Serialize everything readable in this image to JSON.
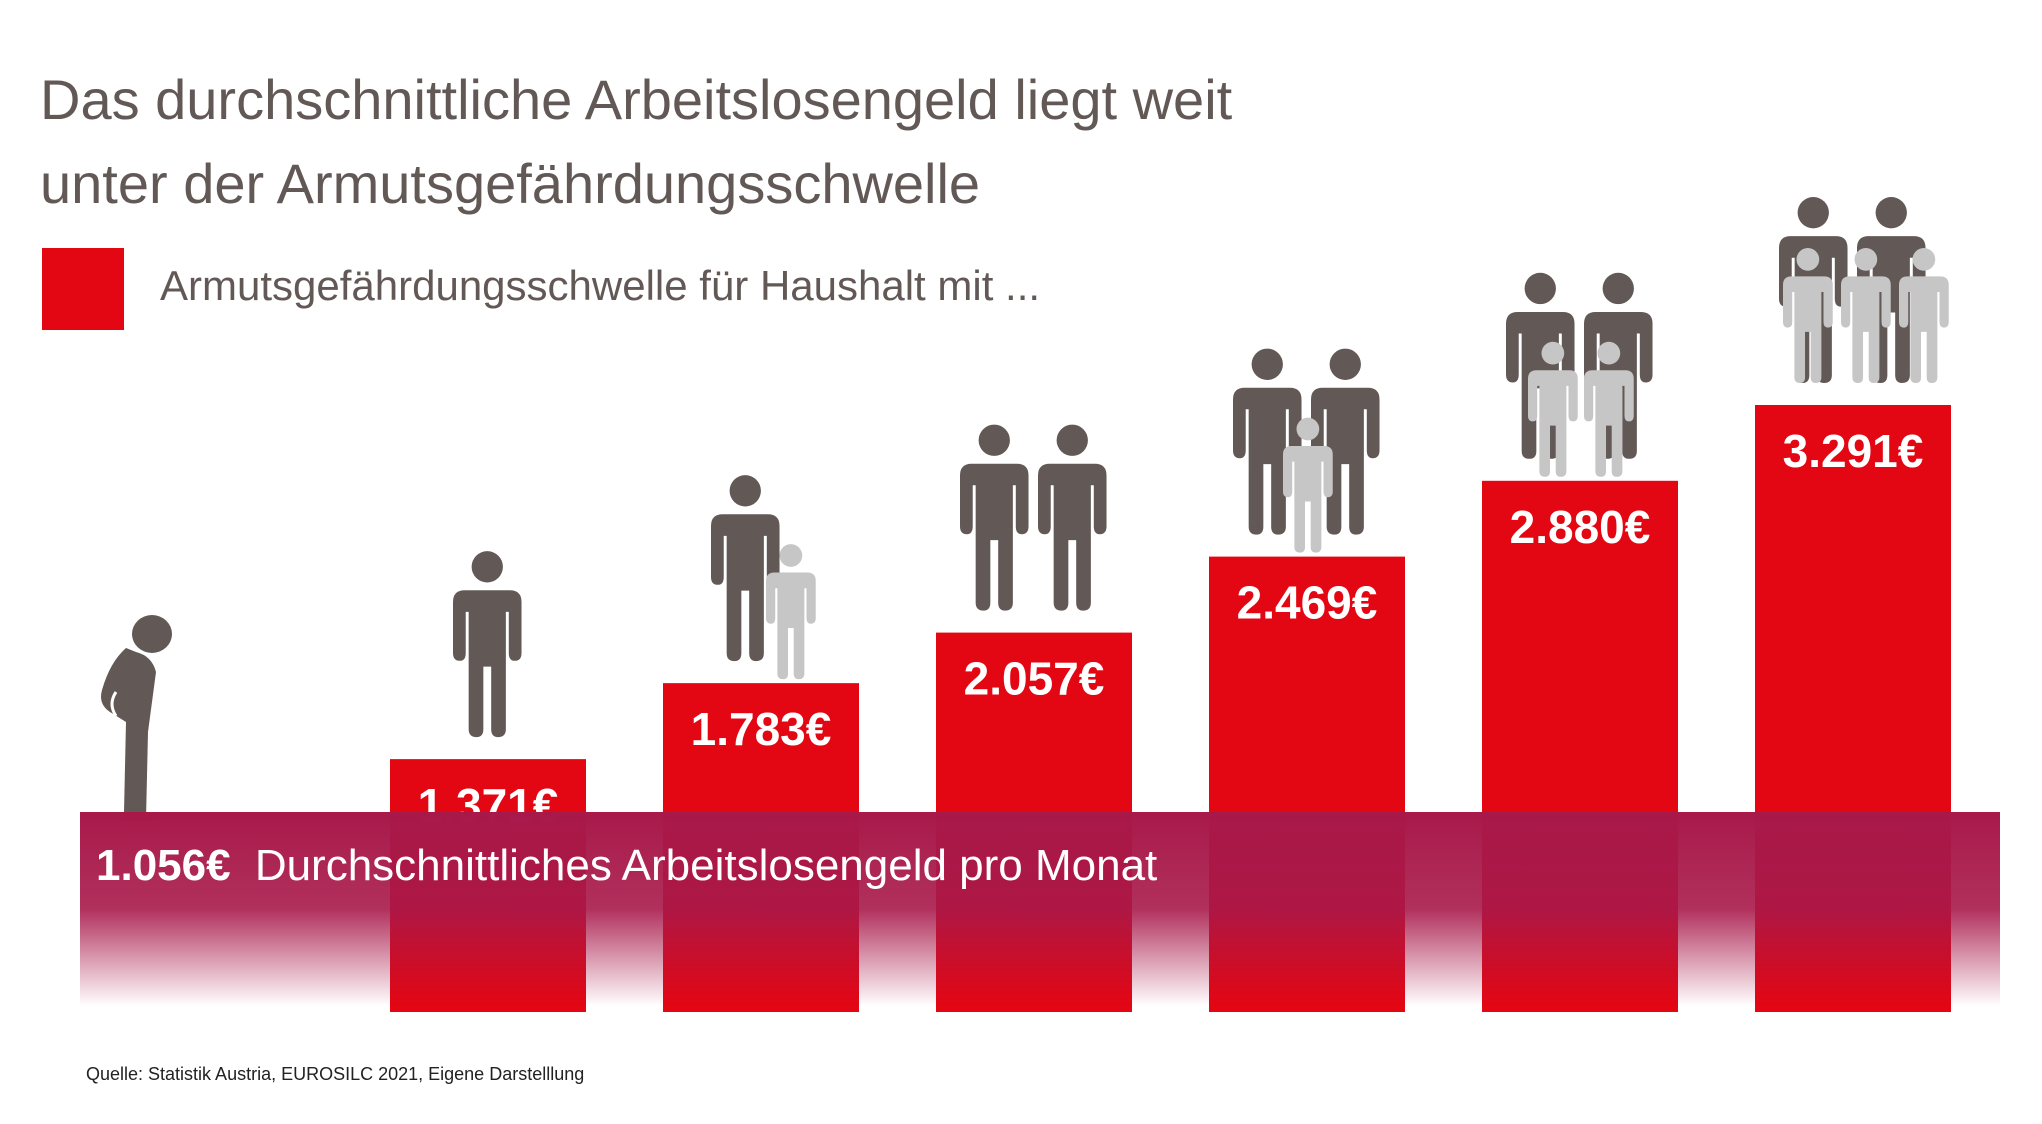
{
  "title_line1": "Das durchschnittliche Arbeitslosengeld liegt weit",
  "title_line2": "unter der Armutsgefährdungsschwelle",
  "legend": {
    "label": "Armutsgefährdungsschwelle für Haushalt mit ...",
    "color": "#e30613"
  },
  "source": "Quelle: Statistik Austria, EUROSILC 2021, Eigene Darstelllung",
  "colors": {
    "bar": "#e30613",
    "adult": "#625956",
    "child": "#c6c6c6",
    "baseline": "#a8194a"
  },
  "icons": {
    "unemployed": "sad-person-icon",
    "adult": "adult-person-icon",
    "child": "child-person-icon"
  },
  "chart_data": {
    "type": "bar",
    "categories": [
      "1 Erwachsener",
      "1 Erwachsener, 1 Kind",
      "2 Erwachsene",
      "2 Erwachsene, 1 Kind",
      "2 Erwachsene, 2 Kinder",
      "2 Erwachsene, 3 Kinder"
    ],
    "values": [
      1371,
      1783,
      2057,
      2469,
      2880,
      3291
    ],
    "value_labels": [
      "1.371€",
      "1.783€",
      "2.057€",
      "2.469€",
      "2.880€",
      "3.291€"
    ],
    "households": [
      {
        "adults": 1,
        "children": 0
      },
      {
        "adults": 1,
        "children": 1
      },
      {
        "adults": 2,
        "children": 0
      },
      {
        "adults": 2,
        "children": 1
      },
      {
        "adults": 2,
        "children": 2
      },
      {
        "adults": 2,
        "children": 3
      }
    ],
    "baseline": {
      "value": 1056,
      "value_label": "1.056€",
      "label": "Durchschnittliches Arbeitslosengeld pro Monat"
    },
    "ylim": [
      0,
      3291
    ],
    "grid": false,
    "legend_position": "top-left",
    "xlabel": "",
    "ylabel": ""
  }
}
